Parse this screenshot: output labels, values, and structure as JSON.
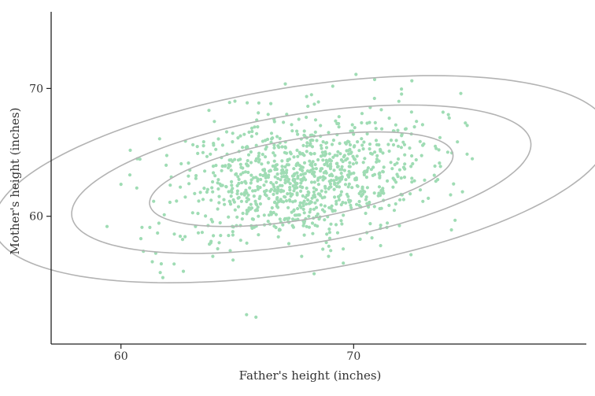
{
  "chart_data": {
    "type": "scatter",
    "title": "",
    "xlabel": "Father's height (inches)",
    "ylabel": "Mother's height (inches)",
    "xlim": [
      57,
      80
    ],
    "ylim": [
      50,
      76
    ],
    "x_ticks": [
      60,
      70
    ],
    "y_ticks": [
      60,
      70
    ],
    "x_tick_labels": [
      "60",
      "70"
    ],
    "y_tick_labels": [
      "60",
      "70"
    ],
    "grid": false,
    "point_color": "#9fdcb4",
    "ellipse_color": "#b3b3b3",
    "approx_point_count": 1000,
    "distribution": {
      "mean_x": 67.7,
      "mean_y": 62.9,
      "sd_x": 2.8,
      "sd_y": 2.55,
      "correlation": 0.28
    },
    "outliers": [
      {
        "x": 59.4,
        "y": 59.2
      },
      {
        "x": 65.4,
        "y": 52.3
      },
      {
        "x": 65.8,
        "y": 52.1
      },
      {
        "x": 61.8,
        "y": 55.2
      },
      {
        "x": 68.3,
        "y": 55.5
      },
      {
        "x": 70.1,
        "y": 71.1
      },
      {
        "x": 70.9,
        "y": 70.7
      },
      {
        "x": 72.5,
        "y": 70.6
      },
      {
        "x": 75.1,
        "y": 64.5
      },
      {
        "x": 74.8,
        "y": 67.3
      },
      {
        "x": 60.7,
        "y": 64.5
      },
      {
        "x": 60.0,
        "y": 62.5
      }
    ],
    "contour_ellipses": [
      {
        "center_x": 67.75,
        "center_y": 62.9,
        "semi_major": 6.85,
        "semi_minor": 3.05,
        "angle_deg": 20
      },
      {
        "center_x": 67.75,
        "center_y": 62.9,
        "semi_major": 10.35,
        "semi_minor": 4.9,
        "angle_deg": 20
      },
      {
        "center_x": 67.75,
        "center_y": 62.9,
        "semi_major": 13.85,
        "semi_minor": 7.0,
        "angle_deg": 20
      }
    ]
  }
}
